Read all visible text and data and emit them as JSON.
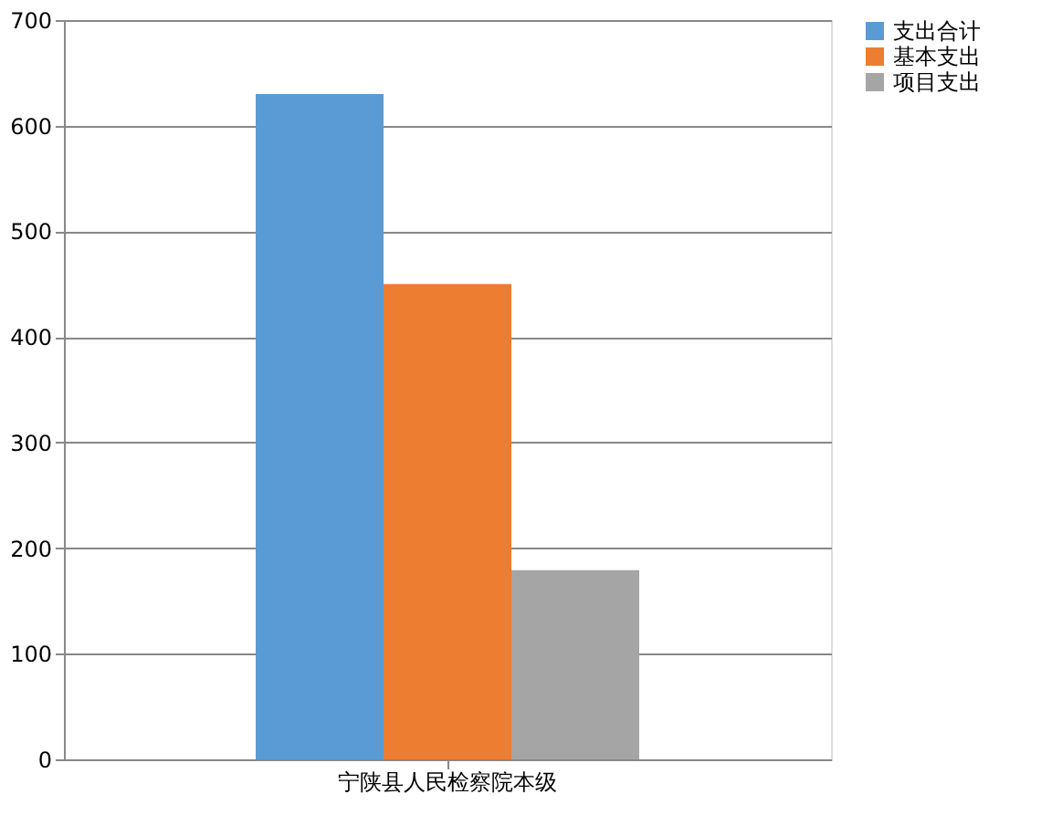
{
  "chart_data": {
    "type": "bar",
    "categories": [
      "宁陕县人民检察院本级"
    ],
    "series": [
      {
        "name": "支出合计",
        "color": "#5b9bd5",
        "values": [
          630
        ]
      },
      {
        "name": "基本支出",
        "color": "#ed7d31",
        "values": [
          450
        ]
      },
      {
        "name": "项目支出",
        "color": "#a5a5a5",
        "values": [
          179
        ]
      }
    ],
    "ylim": [
      0,
      700
    ],
    "yticks": [
      0,
      100,
      200,
      300,
      400,
      500,
      600,
      700
    ],
    "grid": "y",
    "legend": "right"
  }
}
